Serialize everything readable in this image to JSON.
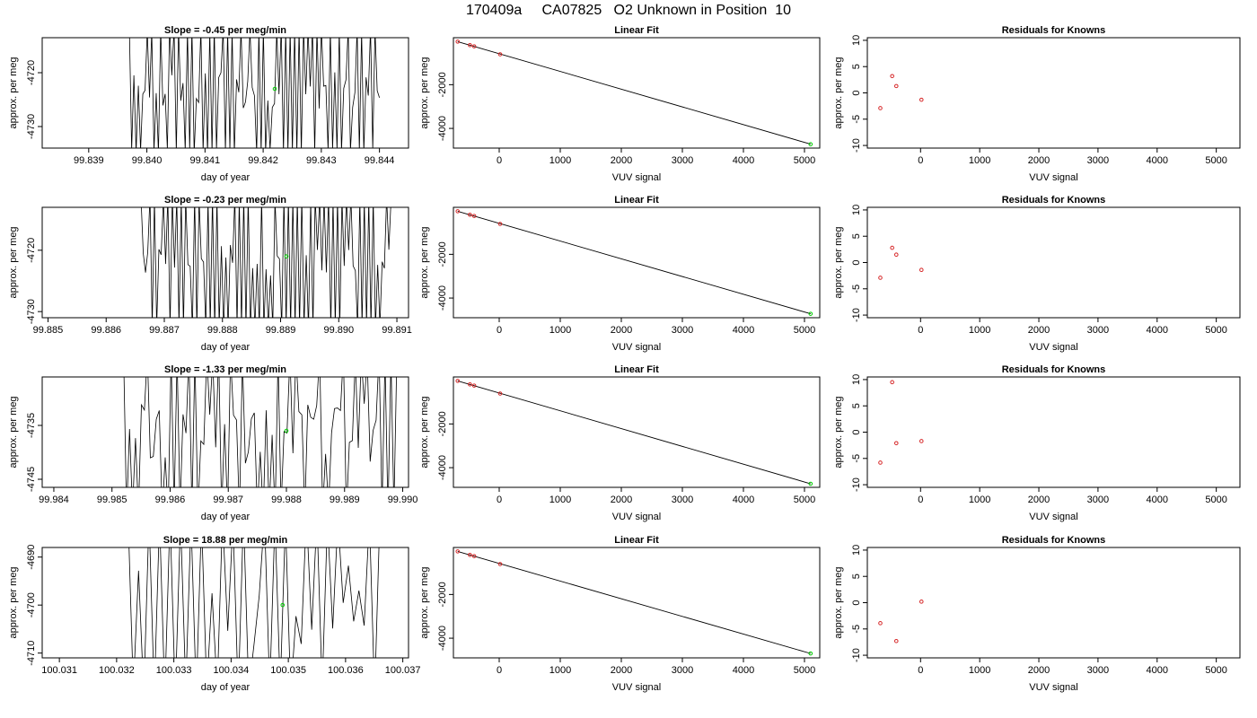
{
  "title": "170409a     CA07825   O2 Unknown in Position  10",
  "colors": {
    "trace": "#000000",
    "known_point": "#d62728",
    "unknown_point": "#00cc00",
    "frame": "#000000"
  },
  "rows": [
    {
      "signal": {
        "title": "Slope =  -0.45  per meg/min",
        "xlabel": "day of year",
        "ylabel": "approx. per meg",
        "xlim": [
          99.8382,
          99.8445
        ],
        "ylim": [
          -4734,
          -4713.5
        ],
        "xticks": [
          "99.839",
          "99.840",
          "99.841",
          "99.842",
          "99.843",
          "99.844"
        ],
        "xtick_values": [
          99.839,
          99.84,
          99.841,
          99.842,
          99.843,
          99.844
        ],
        "yticks": [
          "-4720",
          "-4730"
        ],
        "ytick_values": [
          -4720,
          -4730
        ],
        "x_start": 99.8397,
        "x_end": 99.844,
        "periods": 56,
        "low": -4733,
        "high": -4713.5,
        "noise": 0.35,
        "mean": -4723,
        "unknown_point": {
          "x": 99.8422,
          "y": -4723
        }
      },
      "fit": {
        "title": "Linear Fit",
        "xlabel": "VUV signal",
        "ylabel": "approx. per meg",
        "xlim": [
          -750,
          5250
        ],
        "ylim": [
          -4900,
          150
        ],
        "xticks": [
          "0",
          "1000",
          "2000",
          "3000",
          "4000",
          "5000"
        ],
        "xtick_values": [
          0,
          1000,
          2000,
          3000,
          4000,
          5000
        ],
        "yticks": [
          "-2000",
          "-4000"
        ],
        "ytick_values": [
          -2000,
          -4000
        ],
        "line": [
          [
            -680,
            -30
          ],
          [
            5100,
            -4720
          ]
        ],
        "knowns": [
          [
            -680,
            -30
          ],
          [
            -480,
            -190
          ],
          [
            -410,
            -245
          ],
          [
            15,
            -610
          ]
        ],
        "unknown": [
          5100,
          -4723
        ]
      },
      "residuals": {
        "title": "Residuals for Knowns",
        "xlabel": "VUV signal",
        "ylabel": "approx. per meg",
        "xlim": [
          -900,
          5400
        ],
        "ylim": [
          -10.5,
          10.5
        ],
        "xticks": [
          "0",
          "1000",
          "2000",
          "3000",
          "4000",
          "5000"
        ],
        "xtick_values": [
          0,
          1000,
          2000,
          3000,
          4000,
          5000
        ],
        "yticks": [
          "10",
          "5",
          "0",
          "-5",
          "-10"
        ],
        "ytick_values": [
          10,
          5,
          0,
          -5,
          -10
        ],
        "points": [
          [
            -680,
            -2.9
          ],
          [
            -480,
            3.2
          ],
          [
            -410,
            1.3
          ],
          [
            15,
            -1.3
          ]
        ]
      }
    },
    {
      "signal": {
        "title": "Slope =  -0.23  per meg/min",
        "xlabel": "day of year",
        "ylabel": "approx. per meg",
        "xlim": [
          99.8849,
          99.8912
        ],
        "ylim": [
          -4731,
          -4713
        ],
        "xticks": [
          "99.885",
          "99.886",
          "99.887",
          "99.888",
          "99.889",
          "99.890",
          "99.891"
        ],
        "xtick_values": [
          99.885,
          99.886,
          99.887,
          99.888,
          99.889,
          99.89,
          99.891
        ],
        "yticks": [
          "-4720",
          "-4730"
        ],
        "ytick_values": [
          -4720,
          -4730
        ],
        "x_start": 99.8866,
        "x_end": 99.8909,
        "periods": 56,
        "low": -4731,
        "high": -4713,
        "noise": 0.35,
        "mean": -4721,
        "unknown_point": {
          "x": 99.8891,
          "y": -4721
        }
      },
      "fit": {
        "title": "Linear Fit",
        "xlabel": "VUV signal",
        "ylabel": "approx. per meg",
        "xlim": [
          -750,
          5250
        ],
        "ylim": [
          -4900,
          150
        ],
        "xticks": [
          "0",
          "1000",
          "2000",
          "3000",
          "4000",
          "5000"
        ],
        "xtick_values": [
          0,
          1000,
          2000,
          3000,
          4000,
          5000
        ],
        "yticks": [
          "-2000",
          "-4000"
        ],
        "ytick_values": [
          -2000,
          -4000
        ],
        "line": [
          [
            -680,
            -30
          ],
          [
            5100,
            -4720
          ]
        ],
        "knowns": [
          [
            -680,
            -30
          ],
          [
            -480,
            -190
          ],
          [
            -410,
            -245
          ],
          [
            15,
            -610
          ]
        ],
        "unknown": [
          5100,
          -4721
        ]
      },
      "residuals": {
        "title": "Residuals for Knowns",
        "xlabel": "VUV signal",
        "ylabel": "approx. per meg",
        "xlim": [
          -900,
          5400
        ],
        "ylim": [
          -10.5,
          10.5
        ],
        "xticks": [
          "0",
          "1000",
          "2000",
          "3000",
          "4000",
          "5000"
        ],
        "xtick_values": [
          0,
          1000,
          2000,
          3000,
          4000,
          5000
        ],
        "yticks": [
          "10",
          "5",
          "0",
          "-5",
          "-10"
        ],
        "ytick_values": [
          10,
          5,
          0,
          -5,
          -10
        ],
        "points": [
          [
            -680,
            -2.9
          ],
          [
            -480,
            2.8
          ],
          [
            -410,
            1.5
          ],
          [
            15,
            -1.4
          ]
        ]
      }
    },
    {
      "signal": {
        "title": "Slope =  -1.33  per meg/min",
        "xlabel": "day of year",
        "ylabel": "approx. per meg",
        "xlim": [
          99.9838,
          99.9901
        ],
        "ylim": [
          -4746.5,
          -4726
        ],
        "xticks": [
          "99.984",
          "99.985",
          "99.986",
          "99.987",
          "99.988",
          "99.989",
          "99.990"
        ],
        "xtick_values": [
          99.984,
          99.985,
          99.986,
          99.987,
          99.988,
          99.989,
          99.99
        ],
        "yticks": [
          "-4735",
          "-4745"
        ],
        "ytick_values": [
          -4735,
          -4745
        ],
        "x_start": 99.9852,
        "x_end": 99.9899,
        "periods": 46,
        "low": -4749,
        "high": -4724,
        "noise": 0.45,
        "mean": -4736,
        "unknown_point": {
          "x": 99.988,
          "y": -4736
        }
      },
      "fit": {
        "title": "Linear Fit",
        "xlabel": "VUV signal",
        "ylabel": "approx. per meg",
        "xlim": [
          -750,
          5250
        ],
        "ylim": [
          -4900,
          150
        ],
        "xticks": [
          "0",
          "1000",
          "2000",
          "3000",
          "4000",
          "5000"
        ],
        "xtick_values": [
          0,
          1000,
          2000,
          3000,
          4000,
          5000
        ],
        "yticks": [
          "-2000",
          "-4000"
        ],
        "ytick_values": [
          -2000,
          -4000
        ],
        "line": [
          [
            -680,
            -30
          ],
          [
            5100,
            -4736
          ]
        ],
        "knowns": [
          [
            -680,
            -30
          ],
          [
            -480,
            -190
          ],
          [
            -410,
            -245
          ],
          [
            15,
            -610
          ]
        ],
        "unknown": [
          5100,
          -4736
        ]
      },
      "residuals": {
        "title": "Residuals for Knowns",
        "xlabel": "VUV signal",
        "ylabel": "approx. per meg",
        "xlim": [
          -900,
          5400
        ],
        "ylim": [
          -10.5,
          10.5
        ],
        "xticks": [
          "0",
          "1000",
          "2000",
          "3000",
          "4000",
          "5000"
        ],
        "xtick_values": [
          0,
          1000,
          2000,
          3000,
          4000,
          5000
        ],
        "yticks": [
          "10",
          "5",
          "0",
          "-5",
          "-10"
        ],
        "ytick_values": [
          10,
          5,
          0,
          -5,
          -10
        ],
        "points": [
          [
            -680,
            -5.8
          ],
          [
            -480,
            9.5
          ],
          [
            -410,
            -2.1
          ],
          [
            15,
            -1.7
          ]
        ]
      }
    },
    {
      "signal": {
        "title": "Slope =  18.88  per meg/min",
        "xlabel": "day of year",
        "ylabel": "approx. per meg",
        "xlim": [
          100.0307,
          100.0371
        ],
        "ylim": [
          -4711,
          -4688
        ],
        "xticks": [
          "100.031",
          "100.032",
          "100.033",
          "100.034",
          "100.035",
          "100.036",
          "100.037"
        ],
        "xtick_values": [
          100.031,
          100.032,
          100.033,
          100.034,
          100.035,
          100.036,
          100.037
        ],
        "yticks": [
          "-4690",
          "-4700",
          "-4710"
        ],
        "ytick_values": [
          -4690,
          -4700,
          -4710
        ],
        "x_start": 100.0322,
        "x_end": 100.0366,
        "periods": 24,
        "low": -4716,
        "high": -4684,
        "noise": 0.55,
        "mean": -4700,
        "unknown_point": {
          "x": 100.0349,
          "y": -4700
        }
      },
      "fit": {
        "title": "Linear Fit",
        "xlabel": "VUV signal",
        "ylabel": "approx. per meg",
        "xlim": [
          -750,
          5250
        ],
        "ylim": [
          -4900,
          150
        ],
        "xticks": [
          "0",
          "1000",
          "2000",
          "3000",
          "4000",
          "5000"
        ],
        "xtick_values": [
          0,
          1000,
          2000,
          3000,
          4000,
          5000
        ],
        "yticks": [
          "-2000",
          "-4000"
        ],
        "ytick_values": [
          -2000,
          -4000
        ],
        "line": [
          [
            -680,
            -30
          ],
          [
            5100,
            -4700
          ]
        ],
        "knowns": [
          [
            -680,
            -30
          ],
          [
            -480,
            -190
          ],
          [
            -410,
            -245
          ],
          [
            15,
            -610
          ]
        ],
        "unknown": [
          5100,
          -4700
        ]
      },
      "residuals": {
        "title": "Residuals for Knowns",
        "xlabel": "VUV signal",
        "ylabel": "approx. per meg",
        "xlim": [
          -900,
          5400
        ],
        "ylim": [
          -10.5,
          10.5
        ],
        "xticks": [
          "0",
          "1000",
          "2000",
          "3000",
          "4000",
          "5000"
        ],
        "xtick_values": [
          0,
          1000,
          2000,
          3000,
          4000,
          5000
        ],
        "yticks": [
          "10",
          "5",
          "0",
          "-5",
          "-10"
        ],
        "ytick_values": [
          10,
          5,
          0,
          -5,
          -10
        ],
        "points": [
          [
            -680,
            -3.9
          ],
          [
            -410,
            -7.3
          ],
          [
            15,
            0.2
          ]
        ]
      }
    }
  ],
  "chart_data": [
    {
      "type": "line",
      "title": "Slope =  -0.45  per meg/min",
      "xlabel": "day of year",
      "ylabel": "approx. per meg",
      "xlim": [
        99.8382,
        99.8445
      ],
      "ylim": [
        -4734,
        -4713.5
      ],
      "series": [
        {
          "values": "oscillating trace between -4733 and -4713.5 from 99.8397 to 99.8440"
        }
      ],
      "unknown_point": {
        "x": 99.8422,
        "y": -4723
      }
    },
    {
      "type": "scatter",
      "title": "Linear Fit",
      "xlabel": "VUV signal",
      "ylabel": "approx. per meg",
      "knowns": [
        [
          -680,
          -30
        ],
        [
          -480,
          -190
        ],
        [
          -410,
          -245
        ],
        [
          15,
          -610
        ]
      ],
      "unknown": [
        5100,
        -4723
      ],
      "fit_line": [
        [
          -680,
          -30
        ],
        [
          5100,
          -4720
        ]
      ]
    },
    {
      "type": "scatter",
      "title": "Residuals for Knowns",
      "xlabel": "VUV signal",
      "ylabel": "approx. per meg",
      "ylim": [
        -10,
        10
      ],
      "points": [
        [
          -680,
          -2.9
        ],
        [
          -480,
          3.2
        ],
        [
          -410,
          1.3
        ],
        [
          15,
          -1.3
        ]
      ]
    },
    {
      "type": "line",
      "title": "Slope =  -0.23  per meg/min",
      "xlabel": "day of year",
      "ylabel": "approx. per meg",
      "xlim": [
        99.8849,
        99.8912
      ],
      "ylim": [
        -4731,
        -4713
      ],
      "unknown_point": {
        "x": 99.8891,
        "y": -4721
      }
    },
    {
      "type": "scatter",
      "title": "Linear Fit",
      "xlabel": "VUV signal",
      "ylabel": "approx. per meg",
      "knowns": [
        [
          -680,
          -30
        ],
        [
          -480,
          -190
        ],
        [
          -410,
          -245
        ],
        [
          15,
          -610
        ]
      ],
      "unknown": [
        5100,
        -4721
      ]
    },
    {
      "type": "scatter",
      "title": "Residuals for Knowns",
      "xlabel": "VUV signal",
      "ylabel": "approx. per meg",
      "points": [
        [
          -680,
          -2.9
        ],
        [
          -480,
          2.8
        ],
        [
          -410,
          1.5
        ],
        [
          15,
          -1.4
        ]
      ]
    },
    {
      "type": "line",
      "title": "Slope =  -1.33  per meg/min",
      "xlabel": "day of year",
      "ylabel": "approx. per meg",
      "xlim": [
        99.9838,
        99.9901
      ],
      "ylim": [
        -4746.5,
        -4726
      ],
      "unknown_point": {
        "x": 99.988,
        "y": -4736
      }
    },
    {
      "type": "scatter",
      "title": "Linear Fit",
      "xlabel": "VUV signal",
      "ylabel": "approx. per meg",
      "knowns": [
        [
          -680,
          -30
        ],
        [
          -480,
          -190
        ],
        [
          -410,
          -245
        ],
        [
          15,
          -610
        ]
      ],
      "unknown": [
        5100,
        -4736
      ]
    },
    {
      "type": "scatter",
      "title": "Residuals for Knowns",
      "xlabel": "VUV signal",
      "ylabel": "approx. per meg",
      "points": [
        [
          -680,
          -5.8
        ],
        [
          -480,
          9.5
        ],
        [
          -410,
          -2.1
        ],
        [
          15,
          -1.7
        ]
      ]
    },
    {
      "type": "line",
      "title": "Slope =  18.88  per meg/min",
      "xlabel": "day of year",
      "ylabel": "approx. per meg",
      "xlim": [
        100.0307,
        100.0371
      ],
      "ylim": [
        -4711,
        -4688
      ],
      "unknown_point": {
        "x": 100.0349,
        "y": -4700
      }
    },
    {
      "type": "scatter",
      "title": "Linear Fit",
      "xlabel": "VUV signal",
      "ylabel": "approx. per meg",
      "knowns": [
        [
          -680,
          -30
        ],
        [
          -480,
          -190
        ],
        [
          -410,
          -245
        ],
        [
          15,
          -610
        ]
      ],
      "unknown": [
        5100,
        -4700
      ]
    },
    {
      "type": "scatter",
      "title": "Residuals for Knowns",
      "xlabel": "VUV signal",
      "ylabel": "approx. per meg",
      "points": [
        [
          -680,
          -3.9
        ],
        [
          -410,
          -7.3
        ],
        [
          15,
          0.2
        ]
      ]
    }
  ]
}
